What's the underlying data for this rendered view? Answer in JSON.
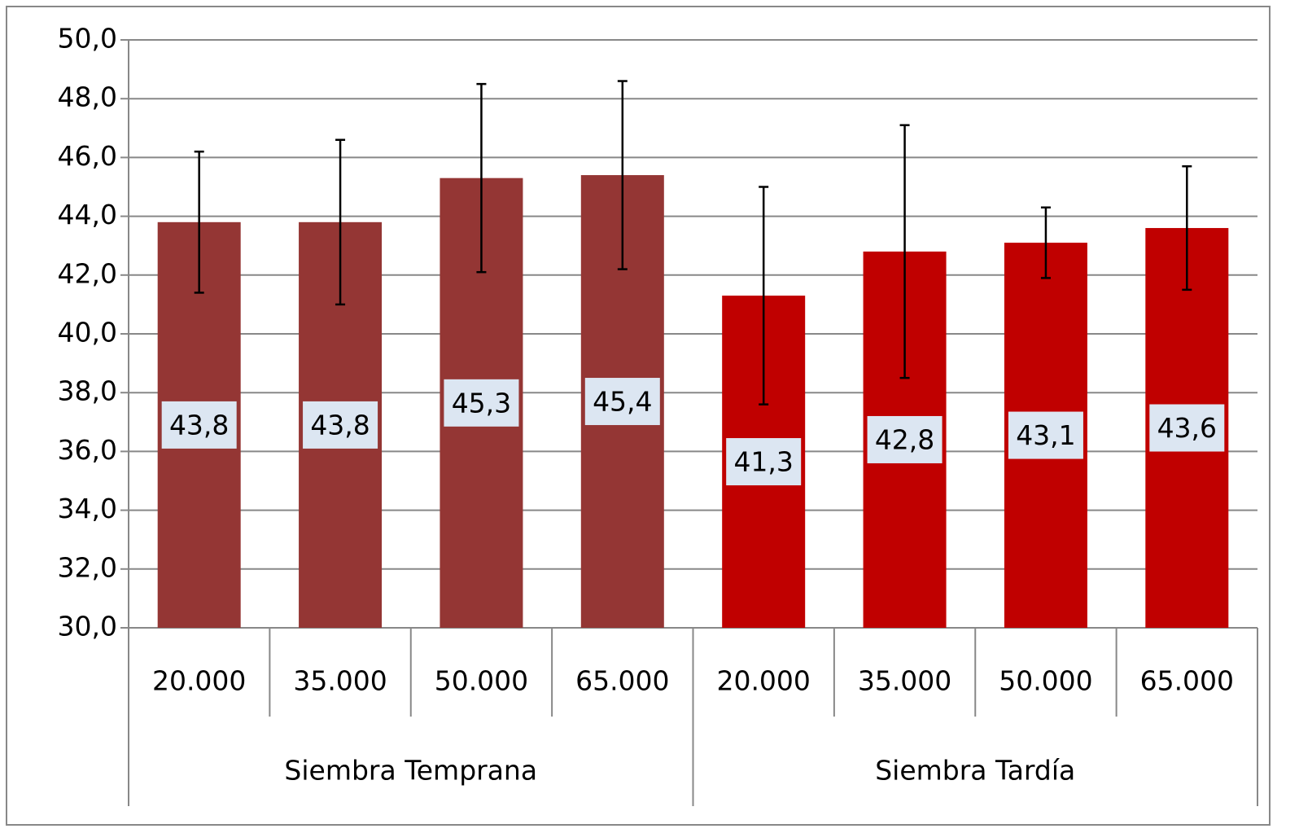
{
  "chart_data": {
    "type": "bar",
    "ylim": [
      30,
      50
    ],
    "yticks": [
      {
        "value": 30,
        "label": "30,0"
      },
      {
        "value": 32,
        "label": "32,0"
      },
      {
        "value": 34,
        "label": "34,0"
      },
      {
        "value": 36,
        "label": "36,0"
      },
      {
        "value": 38,
        "label": "38,0"
      },
      {
        "value": 40,
        "label": "40,0"
      },
      {
        "value": 42,
        "label": "42,0"
      },
      {
        "value": 44,
        "label": "44,0"
      },
      {
        "value": 46,
        "label": "46,0"
      },
      {
        "value": 48,
        "label": "48,0"
      },
      {
        "value": 50,
        "label": "50,0"
      }
    ],
    "grid": true,
    "groups": [
      {
        "label": "Siembra Temprana",
        "color": "#943634",
        "categories": [
          "20.000",
          "35.000",
          "50.000",
          "65.000"
        ],
        "values": [
          43.8,
          43.8,
          45.3,
          45.4
        ],
        "value_labels": [
          "43,8",
          "43,8",
          "45,3",
          "45,4"
        ],
        "errors": [
          2.4,
          2.8,
          3.2,
          3.2
        ]
      },
      {
        "label": "Siembra Tardía",
        "color": "#c00000",
        "categories": [
          "20.000",
          "35.000",
          "50.000",
          "65.000"
        ],
        "values": [
          41.3,
          42.8,
          43.1,
          43.6
        ],
        "value_labels": [
          "41,3",
          "42,8",
          "43,1",
          "43,6"
        ],
        "errors": [
          3.7,
          4.3,
          1.2,
          2.1
        ]
      }
    ]
  }
}
